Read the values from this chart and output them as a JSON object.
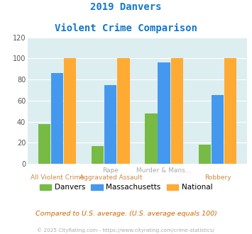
{
  "title_line1": "2019 Danvers",
  "title_line2": "Violent Crime Comparison",
  "top_labels": [
    "",
    "Rape",
    "Murder & Mans...",
    ""
  ],
  "bottom_labels": [
    "All Violent Crime",
    "Aggravated Assault",
    "",
    "Robbery"
  ],
  "danvers": [
    38,
    17,
    48,
    18
  ],
  "massachusetts": [
    86,
    75,
    96,
    65
  ],
  "national": [
    100,
    100,
    100,
    100
  ],
  "color_danvers": "#77bb44",
  "color_massachusetts": "#4499ee",
  "color_national": "#ffaa33",
  "ylim": [
    0,
    120
  ],
  "yticks": [
    0,
    20,
    40,
    60,
    80,
    100,
    120
  ],
  "bg_color": "#ddeef0",
  "subtitle": "Compared to U.S. average. (U.S. average equals 100)",
  "footer": "© 2025 CityRating.com - https://www.cityrating.com/crime-statistics/",
  "title_color": "#1177cc",
  "subtitle_color": "#cc6600",
  "footer_color": "#aaaaaa",
  "label_color_top": "#aaaaaa",
  "label_color_bottom": "#cc8844"
}
